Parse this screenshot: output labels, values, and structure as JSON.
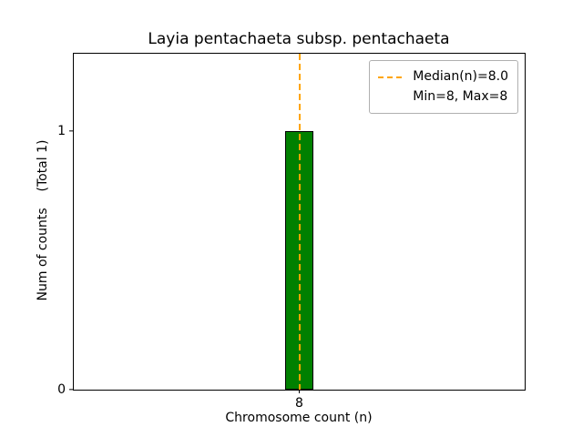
{
  "figure": {
    "background": "#ffffff"
  },
  "chart_data": {
    "type": "bar",
    "title": "Layia pentachaeta subsp. pentachaeta",
    "xlabel": "Chromosome count (n)",
    "ylabel": "Num of counts    (Total 1)",
    "categories": [
      "8"
    ],
    "values": [
      1
    ],
    "total_count": 1,
    "ylim": [
      0,
      1.3
    ],
    "yticks": [
      {
        "value": 0,
        "label": "0"
      },
      {
        "value": 1,
        "label": "1"
      }
    ],
    "xticks": [
      "8"
    ],
    "grid": false,
    "bar_color": "#008000",
    "bar_edge_color": "#000000",
    "median_line": {
      "x": 8,
      "color": "#ffa500",
      "style": "dashed",
      "label": "Median(n)=8.0"
    },
    "stats": {
      "median": 8.0,
      "min": 8,
      "max": 8
    },
    "legend": {
      "position": "upper-right",
      "items": [
        {
          "label": "Median(n)=8.0",
          "handle": "dashed-orange-line"
        },
        {
          "label": "Min=8, Max=8",
          "handle": null
        }
      ]
    }
  }
}
